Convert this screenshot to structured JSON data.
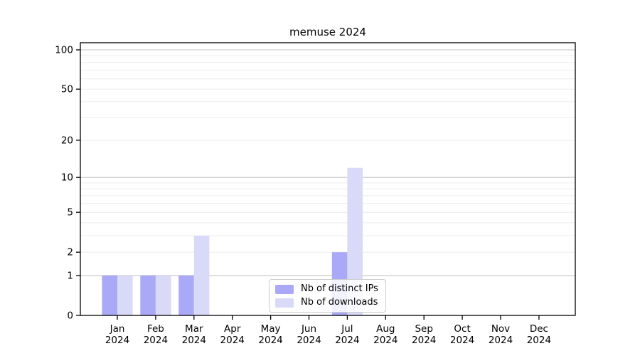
{
  "figure": {
    "title": "memuse 2024"
  },
  "chart_data": {
    "type": "bar",
    "title": "memuse 2024",
    "year_label": "2024",
    "categories": [
      "Jan",
      "Feb",
      "Mar",
      "Apr",
      "May",
      "Jun",
      "Jul",
      "Aug",
      "Sep",
      "Oct",
      "Nov",
      "Dec"
    ],
    "series": [
      {
        "name": "Nb of distinct IPs",
        "color": "#a9a9f8",
        "values": [
          1,
          1,
          1,
          0,
          0,
          0,
          2,
          0,
          0,
          0,
          0,
          0
        ]
      },
      {
        "name": "Nb of downloads",
        "color": "#d9d9f8",
        "values": [
          1,
          1,
          3,
          0,
          0,
          0,
          12,
          0,
          0,
          0,
          0,
          0
        ]
      }
    ],
    "yticks": [
      100,
      50,
      20,
      10,
      5,
      2,
      1,
      0
    ],
    "gridlines": {
      "minor": [
        2,
        3,
        4,
        5,
        6,
        7,
        8,
        9,
        20,
        30,
        40,
        50,
        60,
        70,
        80,
        90
      ],
      "major": [
        1,
        10,
        100
      ]
    },
    "yscale": "log10(1+v)",
    "ylim": [
      0,
      113
    ],
    "xlabel": "",
    "ylabel": "",
    "grid": true,
    "legend": {
      "position": "lower center"
    }
  }
}
